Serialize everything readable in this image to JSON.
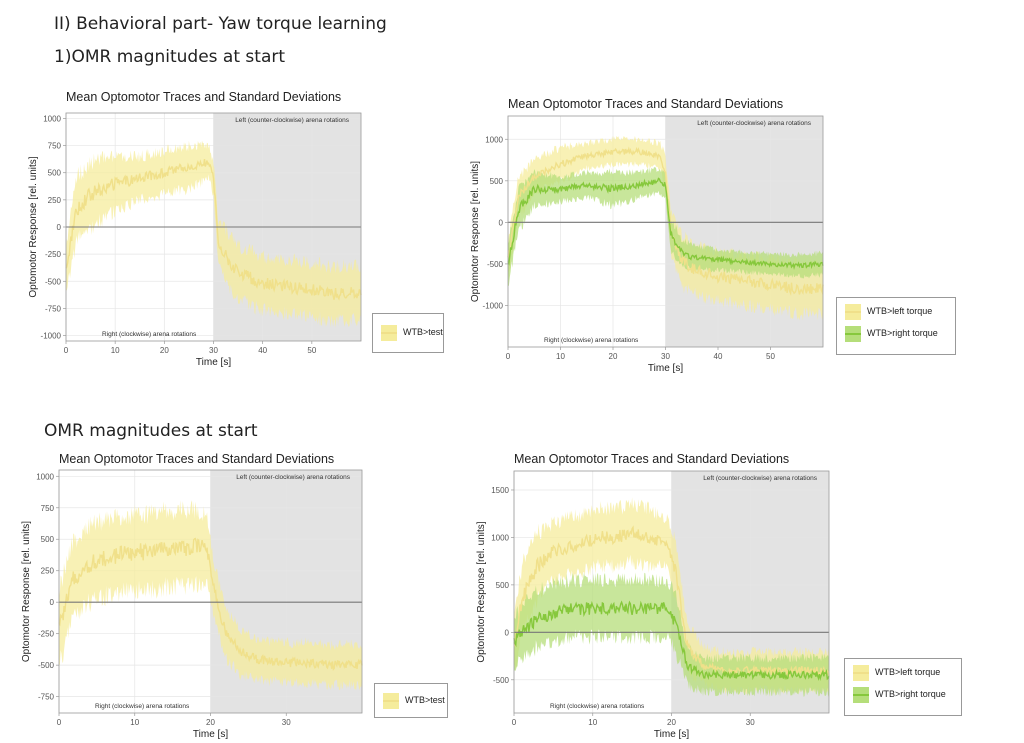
{
  "headings": {
    "section": "II) Behavioral part- Yaw torque learning",
    "sub1": "1)OMR magnitudes at start",
    "sub2": "OMR magnitudes at start"
  },
  "colors": {
    "yellow_line": "#f0e08a",
    "yellow_band": "#f5ec9c",
    "green_line": "#86c83c",
    "green_band": "#b5de7a",
    "shade": "#e3e3e3"
  },
  "chart_data": [
    {
      "type": "line",
      "title": "Mean Optomotor Traces and Standard Deviations",
      "xlabel": "Time [s]",
      "ylabel": "Optomotor Response [rel. units]",
      "xlim": [
        0,
        60
      ],
      "ylim": [
        -1050,
        1050
      ],
      "xticks": [
        0,
        10,
        20,
        30,
        40,
        50
      ],
      "yticks": [
        -1000,
        -750,
        -500,
        -250,
        0,
        250,
        500,
        750,
        1000
      ],
      "switch_time": 30,
      "annotations": {
        "left": "Left (counter-clockwise) arena rotations",
        "right": "Right (clockwise) arena rotations"
      },
      "grid": true,
      "legend_position": "right",
      "series": [
        {
          "name": "WTB>test",
          "color": "#f0e08a",
          "band": "#f5ec9c",
          "x": [
            0,
            2,
            5,
            10,
            15,
            20,
            25,
            29,
            30,
            31,
            33,
            35,
            40,
            45,
            50,
            55,
            60
          ],
          "y": [
            -400,
            150,
            300,
            400,
            450,
            500,
            550,
            600,
            450,
            -150,
            -300,
            -420,
            -520,
            -550,
            -580,
            -620,
            -600
          ],
          "sd": [
            200,
            300,
            300,
            250,
            200,
            200,
            200,
            150,
            150,
            200,
            250,
            250,
            250,
            250,
            250,
            250,
            250
          ]
        }
      ]
    },
    {
      "type": "line",
      "title": "Mean Optomotor Traces and Standard Deviations",
      "xlabel": "Time [s]",
      "ylabel": "Optomotor Response [rel. units]",
      "xlim": [
        0,
        60
      ],
      "ylim": [
        -1500,
        1280
      ],
      "xticks": [
        0,
        10,
        20,
        30,
        40,
        50
      ],
      "yticks": [
        -1000,
        -500,
        0,
        500,
        1000
      ],
      "switch_time": 30,
      "annotations": {
        "left": "Left (counter-clockwise) arena rotations",
        "right": "Right (clockwise) arena rotations"
      },
      "grid": true,
      "legend_position": "right",
      "series": [
        {
          "name": "WTB>left torque",
          "color": "#f0e08a",
          "band": "#f5ec9c",
          "x": [
            0,
            2,
            5,
            10,
            15,
            20,
            25,
            29,
            30,
            31,
            33,
            35,
            40,
            45,
            50,
            55,
            60
          ],
          "y": [
            -450,
            300,
            550,
            700,
            800,
            850,
            850,
            800,
            600,
            -100,
            -450,
            -550,
            -650,
            -700,
            -750,
            -800,
            -800
          ],
          "sd": [
            250,
            250,
            200,
            200,
            150,
            150,
            150,
            150,
            200,
            250,
            300,
            300,
            300,
            300,
            300,
            300,
            300
          ]
        },
        {
          "name": "WTB>right torque",
          "color": "#86c83c",
          "band": "#b5de7a",
          "x": [
            0,
            2,
            5,
            10,
            15,
            20,
            25,
            29,
            30,
            31,
            33,
            35,
            40,
            45,
            50,
            55,
            60
          ],
          "y": [
            -500,
            150,
            400,
            400,
            450,
            400,
            450,
            500,
            450,
            -150,
            -350,
            -420,
            -450,
            -480,
            -500,
            -520,
            -500
          ],
          "sd": [
            250,
            250,
            200,
            150,
            150,
            200,
            150,
            150,
            150,
            200,
            150,
            150,
            120,
            120,
            120,
            130,
            130
          ]
        }
      ]
    },
    {
      "type": "line",
      "title": "Mean Optomotor Traces and Standard Deviations",
      "xlabel": "Time [s]",
      "ylabel": "Optomotor Response [rel. units]",
      "xlim": [
        0,
        40
      ],
      "ylim": [
        -880,
        1050
      ],
      "xticks": [
        0,
        10,
        20,
        30
      ],
      "yticks": [
        -750,
        -500,
        -250,
        0,
        250,
        500,
        750,
        1000
      ],
      "switch_time": 20,
      "annotations": {
        "left": "Left (counter-clockwise) arena rotations",
        "right": "Right (clockwise) arena rotations"
      },
      "grid": true,
      "legend_position": "right",
      "series": [
        {
          "name": "WTB>test",
          "color": "#f0e08a",
          "band": "#f5ec9c",
          "x": [
            0,
            2,
            4,
            6,
            8,
            10,
            12,
            14,
            16,
            18,
            19.5,
            20.5,
            22,
            24,
            26,
            28,
            30,
            32,
            34,
            36,
            38,
            40
          ],
          "y": [
            -200,
            200,
            300,
            350,
            380,
            400,
            400,
            420,
            430,
            440,
            430,
            100,
            -250,
            -400,
            -450,
            -470,
            -480,
            -480,
            -490,
            -500,
            -490,
            -500
          ],
          "sd": [
            300,
            300,
            300,
            300,
            300,
            300,
            300,
            300,
            300,
            300,
            250,
            200,
            200,
            180,
            160,
            160,
            160,
            160,
            160,
            160,
            160,
            160
          ]
        }
      ]
    },
    {
      "type": "line",
      "title": "Mean Optomotor Traces and Standard Deviations",
      "xlabel": "Time [s]",
      "ylabel": "Optomotor Response [rel. units]",
      "xlim": [
        0,
        40
      ],
      "ylim": [
        -850,
        1700
      ],
      "xticks": [
        0,
        10,
        20,
        30
      ],
      "yticks": [
        -500,
        0,
        500,
        1000,
        1500
      ],
      "switch_time": 20,
      "annotations": {
        "left": "Left (counter-clockwise) arena rotations",
        "right": "Right (clockwise) arena rotations"
      },
      "grid": true,
      "legend_position": "right",
      "series": [
        {
          "name": "WTB>left torque",
          "color": "#f0e08a",
          "band": "#f5ec9c",
          "x": [
            0,
            1,
            3,
            5,
            7,
            9,
            11,
            13,
            15,
            17,
            19.5,
            20.5,
            22,
            24,
            26,
            28,
            30,
            32,
            34,
            36,
            38,
            40
          ],
          "y": [
            -150,
            350,
            700,
            850,
            900,
            950,
            1000,
            1000,
            1050,
            1000,
            950,
            650,
            -150,
            -350,
            -400,
            -420,
            -400,
            -400,
            -420,
            -400,
            -400,
            -420
          ],
          "sd": [
            300,
            350,
            350,
            300,
            300,
            300,
            300,
            300,
            300,
            300,
            250,
            300,
            250,
            200,
            200,
            200,
            200,
            200,
            200,
            200,
            200,
            200
          ]
        },
        {
          "name": "WTB>right torque",
          "color": "#86c83c",
          "band": "#b5de7a",
          "x": [
            0,
            1,
            3,
            5,
            7,
            9,
            11,
            13,
            15,
            17,
            19.5,
            20.5,
            22,
            24,
            26,
            28,
            30,
            32,
            34,
            36,
            38,
            40
          ],
          "y": [
            -100,
            0,
            150,
            200,
            250,
            250,
            250,
            250,
            250,
            250,
            250,
            100,
            -350,
            -450,
            -450,
            -450,
            -450,
            -450,
            -450,
            -450,
            -450,
            -450
          ],
          "sd": [
            250,
            300,
            300,
            300,
            300,
            300,
            300,
            300,
            300,
            300,
            300,
            300,
            200,
            180,
            180,
            180,
            180,
            180,
            180,
            180,
            180,
            180
          ]
        }
      ]
    }
  ]
}
